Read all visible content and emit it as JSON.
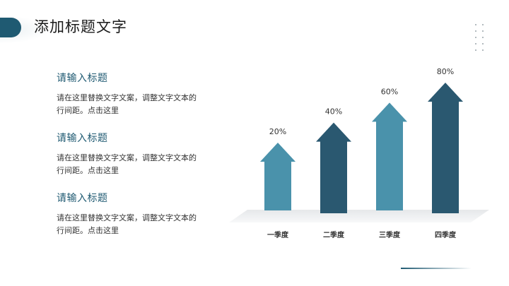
{
  "slide": {
    "title": "添加标题文字"
  },
  "text_blocks": [
    {
      "heading": "请输入标题",
      "body_line1": "请在这里替换文字文案，调整文字文本的",
      "body_line2": "行间距。点击这里"
    },
    {
      "heading": "请输入标题",
      "body_line1": "请在这里替换文字文案，调整文字文本的",
      "body_line2": "行间距。点击这里"
    },
    {
      "heading": "请输入标题",
      "body_line1": "请在这里替换文字文案，调整文字文本的",
      "body_line2": "行间距。点击这里"
    }
  ],
  "chart_data": {
    "type": "bar",
    "categories": [
      "一季度",
      "二季度",
      "三季度",
      "四季度"
    ],
    "values": [
      20,
      40,
      60,
      80
    ],
    "data_labels": [
      "20%",
      "40%",
      "60%",
      "80%"
    ],
    "series_colors": [
      "#4a92ab",
      "#2a5870",
      "#4a92ab",
      "#2a5870"
    ],
    "ylim": [
      0,
      80
    ],
    "grid": false,
    "legend": "none",
    "title": "",
    "xlabel": "",
    "ylabel": ""
  },
  "colors": {
    "accent_dark": "#1f5a72",
    "accent_light": "#4a92ab"
  }
}
